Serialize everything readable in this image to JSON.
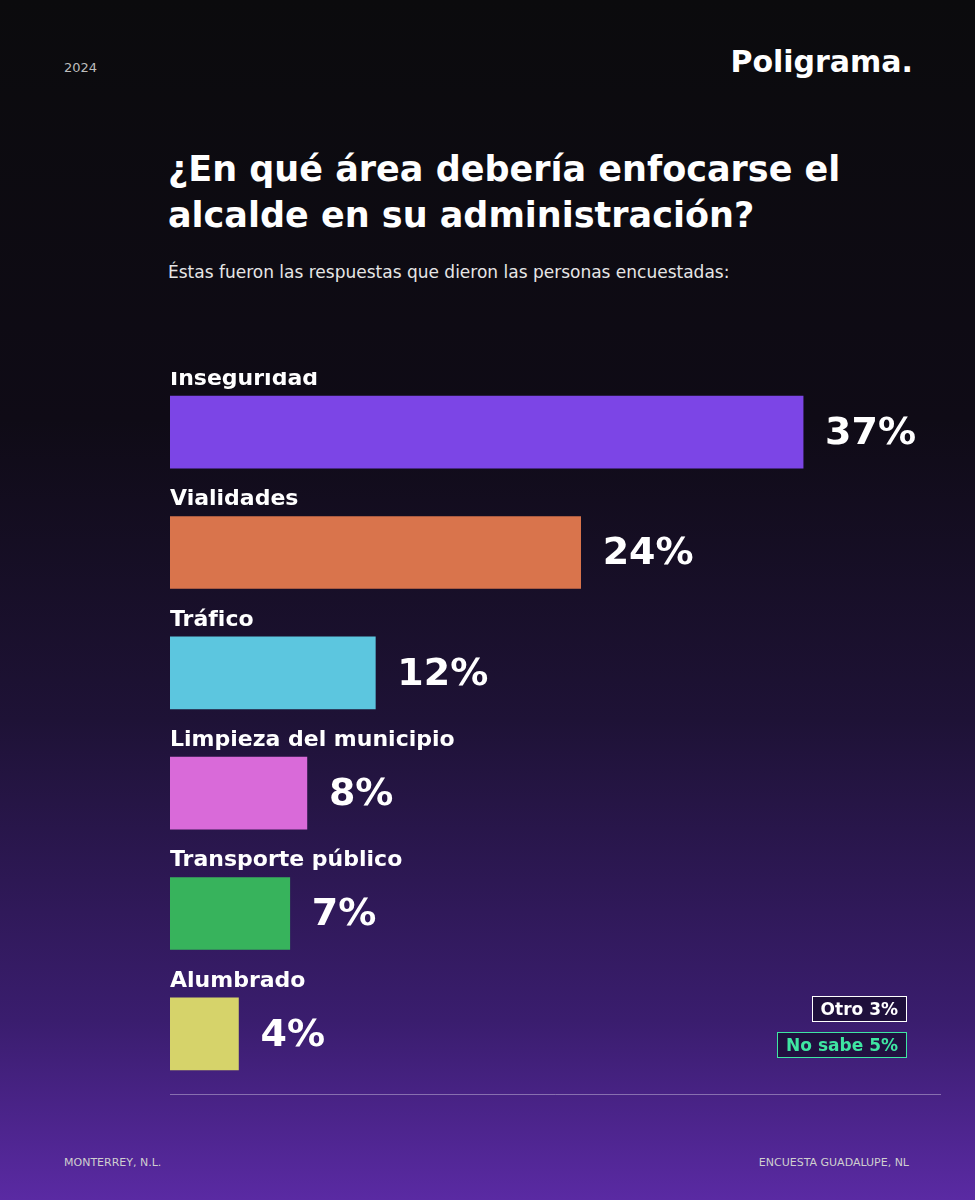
{
  "header": {
    "year": "2024",
    "brand": "Poligrama."
  },
  "chart_data": {
    "type": "bar",
    "orientation": "horizontal",
    "title": "¿En qué área debería enfocarse el alcalde en su administración?",
    "subtitle": "Éstas fueron las respuestas que dieron las personas encuestadas:",
    "categories": [
      "Inseguridad",
      "Vialidades",
      "Tráfico",
      "Limpieza del municipio",
      "Transporte público",
      "Alumbrado"
    ],
    "values": [
      37,
      24,
      12,
      8,
      7,
      4
    ],
    "value_labels": [
      "37%",
      "24%",
      "12%",
      "8%",
      "7%",
      "4%"
    ],
    "colors": [
      "#7c45e6",
      "#d9744c",
      "#5cc6df",
      "#d96ad9",
      "#37b35c",
      "#d6d36a"
    ],
    "data_labels": true,
    "xlim": [
      0,
      45
    ],
    "xticks": [],
    "grid": false,
    "others": [
      {
        "text": "Otro 3%",
        "color": "#ffffff"
      },
      {
        "text": "No sabe 5%",
        "color": "#3fe6a2"
      }
    ]
  },
  "footer": {
    "left": "MONTERREY, N.L.",
    "right": "ENCUESTA GUADALUPE, NL"
  }
}
